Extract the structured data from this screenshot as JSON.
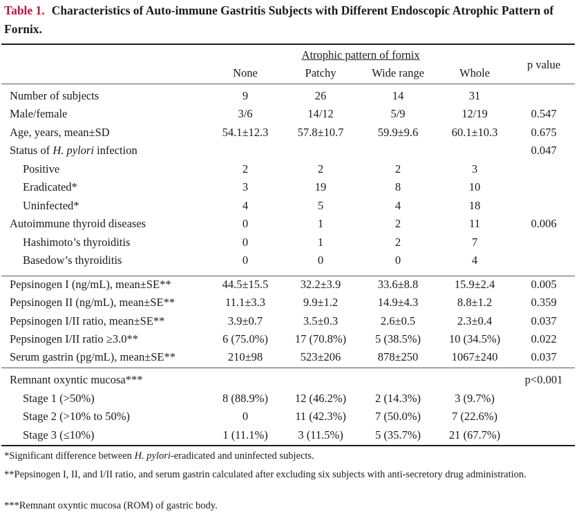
{
  "title": {
    "label": "Table 1.",
    "text": "Characteristics of Auto-immune Gastritis Subjects with Different Endoscopic Atrophic Pattern of Fornix."
  },
  "header": {
    "group_label": "Atrophic pattern of fornix",
    "columns": [
      "None",
      "Patchy",
      "Wide range",
      "Whole"
    ],
    "pvalue_label": "p value"
  },
  "rows": [
    {
      "label": "Number of subjects",
      "indent": false,
      "values": [
        "9",
        "26",
        "14",
        "31"
      ],
      "p": ""
    },
    {
      "label": "Male/female",
      "indent": false,
      "values": [
        "3/6",
        "14/12",
        "5/9",
        "12/19"
      ],
      "p": "0.547"
    },
    {
      "label": "Age, years, mean±SD",
      "indent": false,
      "values": [
        "54.1±12.3",
        "57.8±10.7",
        "59.9±9.6",
        "60.1±10.3"
      ],
      "p": "0.675"
    },
    {
      "label_pre": "Status of ",
      "label_italic": "H. pylori",
      "label_post": " infection",
      "indent": false,
      "values": [
        "",
        "",
        "",
        ""
      ],
      "p": "0.047"
    },
    {
      "label": "Positive",
      "indent": true,
      "values": [
        "2",
        "2",
        "2",
        "3"
      ],
      "p": ""
    },
    {
      "label": "Eradicated*",
      "indent": true,
      "values": [
        "3",
        "19",
        "8",
        "10"
      ],
      "p": ""
    },
    {
      "label": "Uninfected*",
      "indent": true,
      "values": [
        "4",
        "5",
        "4",
        "18"
      ],
      "p": ""
    },
    {
      "label": "Autoimmune thyroid diseases",
      "indent": false,
      "values": [
        "0",
        "1",
        "2",
        "11"
      ],
      "p": "0.006"
    },
    {
      "label": "Hashimoto’s thyroiditis",
      "indent": true,
      "values": [
        "0",
        "1",
        "2",
        "7"
      ],
      "p": ""
    },
    {
      "label": "Basedow’s thyroiditis",
      "indent": true,
      "values": [
        "0",
        "0",
        "0",
        "4"
      ],
      "p": ""
    },
    {
      "label": "Pepsinogen I (ng/mL), mean±SE**",
      "indent": false,
      "values": [
        "44.5±15.5",
        "32.2±3.9",
        "33.6±8.8",
        "15.9±2.4"
      ],
      "p": "0.005"
    },
    {
      "label": "Pepsinogen II (ng/mL), mean±SE**",
      "indent": false,
      "values": [
        "11.1±3.3",
        "9.9±1.2",
        "14.9±4.3",
        "8.8±1.2"
      ],
      "p": "0.359"
    },
    {
      "label": "Pepsinogen I/II ratio, mean±SE**",
      "indent": false,
      "values": [
        "3.9±0.7",
        "3.5±0.3",
        "2.6±0.5",
        "2.3±0.4"
      ],
      "p": "0.037"
    },
    {
      "label": "Pepsinogen I/II ratio ≥3.0**",
      "indent": false,
      "values": [
        "6 (75.0%)",
        "17 (70.8%)",
        "5 (38.5%)",
        "10 (34.5%)"
      ],
      "p": "0.022"
    },
    {
      "label": "Serum gastrin (pg/mL), mean±SE**",
      "indent": false,
      "values": [
        "210±98",
        "523±206",
        "878±250",
        "1067±240"
      ],
      "p": "0.037"
    },
    {
      "label": "Remnant oxyntic mucosa***",
      "indent": false,
      "values": [
        "",
        "",
        "",
        ""
      ],
      "p": "p<0.001"
    },
    {
      "label": "Stage 1 (>50%)",
      "indent": true,
      "values": [
        "8 (88.9%)",
        "12 (46.2%)",
        "2 (14.3%)",
        "3 (9.7%)"
      ],
      "p": ""
    },
    {
      "label": "Stage 2 (>10% to 50%)",
      "indent": true,
      "values": [
        "0",
        "11 (42.3%)",
        "7 (50.0%)",
        "7 (22.6%)"
      ],
      "p": ""
    },
    {
      "label": "Stage 3 (≤10%)",
      "indent": true,
      "values": [
        "1 (11.1%)",
        "3 (11.5%)",
        "5 (35.7%)",
        "21 (67.7%)"
      ],
      "p": ""
    }
  ],
  "footnotes": {
    "f1_pre": "*Significant difference between ",
    "f1_italic": "H. pylori",
    "f1_post": "-eradicated and uninfected subjects.",
    "f2": "**Pepsinogen I, II, and I/II ratio, and serum gastrin calculated after excluding six subjects with anti-secretory drug administration.",
    "f3": "***Remnant oxyntic mucosa (ROM) of gastric body."
  },
  "colors": {
    "label_red": "#c0103a",
    "text": "#1a1a1a"
  }
}
